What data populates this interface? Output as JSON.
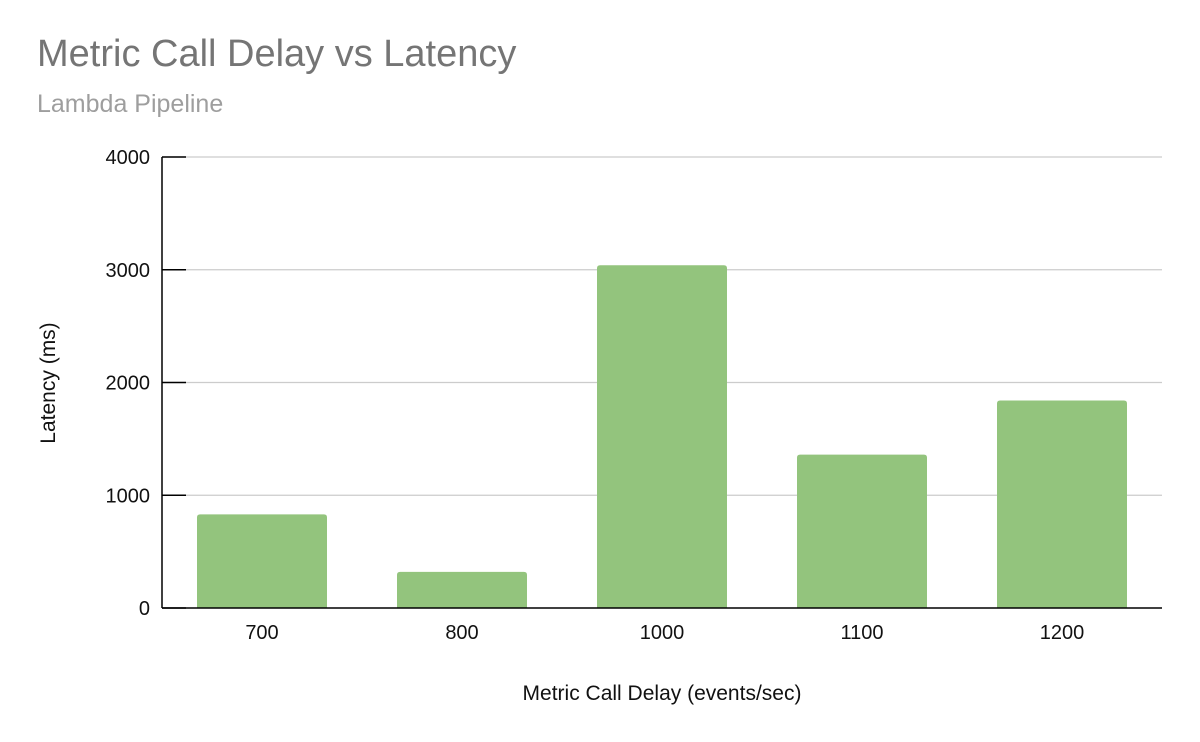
{
  "chart_data": {
    "type": "bar",
    "title": "Metric Call Delay vs Latency",
    "subtitle": "Lambda Pipeline",
    "xlabel": "Metric Call Delay (events/sec)",
    "ylabel": "Latency (ms)",
    "categories": [
      "700",
      "800",
      "1000",
      "1100",
      "1200"
    ],
    "values": [
      830,
      320,
      3040,
      1360,
      1840
    ],
    "ylim": [
      0,
      4000
    ],
    "yticks": [
      "0",
      "1000",
      "2000",
      "3000",
      "4000"
    ],
    "grid": true,
    "legend": "none",
    "bar_color": "#93c47d",
    "gridline_color": "#cccccc",
    "axis_color": "#000000"
  }
}
